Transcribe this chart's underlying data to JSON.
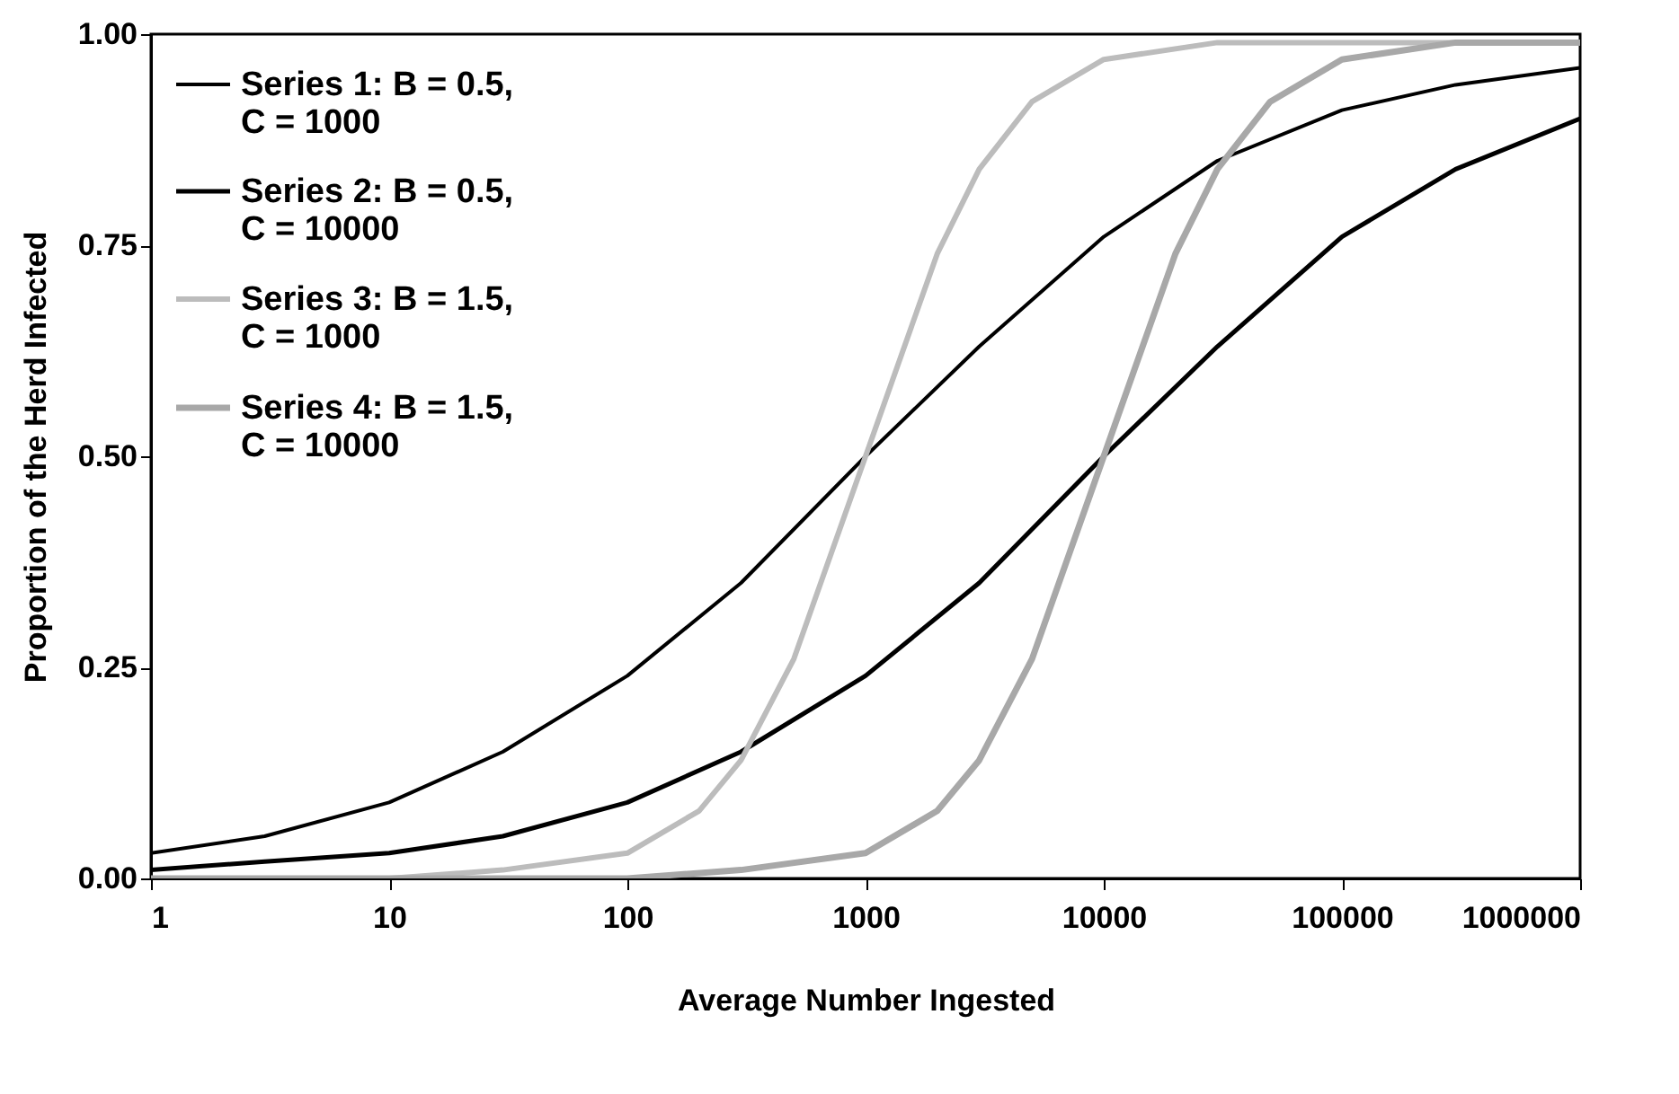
{
  "chart_data": {
    "type": "line",
    "xlabel": "Average Number Ingested",
    "ylabel": "Proportion of the Herd Infected",
    "log": "x",
    "xlim": [
      1,
      1000000
    ],
    "xticks": [
      1,
      10,
      100,
      1000,
      10000,
      100000,
      1000000
    ],
    "ylim": [
      0,
      1
    ],
    "yticks": [
      {
        "value": 0,
        "label": "0.00"
      },
      {
        "value": 0.25,
        "label": "0.25"
      },
      {
        "value": 0.5,
        "label": "0.50"
      },
      {
        "value": 0.75,
        "label": "0.75"
      },
      {
        "value": 1,
        "label": "1.00"
      }
    ],
    "grid": false,
    "legend": "top left",
    "line_style": "solid",
    "marker": "none",
    "series": [
      {
        "name": "Series 1: B = 0.5, C = 1000",
        "color": "#000000",
        "x": [
          1,
          3,
          10,
          30,
          100,
          300,
          1000,
          3000,
          10000,
          30000,
          100000,
          300000,
          1000000
        ],
        "values": [
          0.03,
          0.05,
          0.09,
          0.15,
          0.24,
          0.35,
          0.5,
          0.63,
          0.76,
          0.85,
          0.91,
          0.94,
          0.96
        ]
      },
      {
        "name": "Series 2: B = 0.5, C = 10000",
        "color": "#000000",
        "x": [
          1,
          3,
          10,
          30,
          100,
          300,
          1000,
          3000,
          10000,
          30000,
          100000,
          300000,
          1000000
        ],
        "values": [
          0.01,
          0.02,
          0.03,
          0.05,
          0.09,
          0.15,
          0.24,
          0.35,
          0.5,
          0.63,
          0.76,
          0.84,
          0.9
        ]
      },
      {
        "name": "Series 3: B = 1.5, C = 1000",
        "color": "#bcbcbc",
        "x": [
          1,
          10,
          30,
          100,
          200,
          300,
          500,
          1000,
          2000,
          3000,
          5000,
          10000,
          30000,
          100000,
          1000000
        ],
        "values": [
          0,
          0,
          0.01,
          0.03,
          0.08,
          0.14,
          0.26,
          0.5,
          0.74,
          0.84,
          0.92,
          0.97,
          0.99,
          0.99,
          0.99
        ]
      },
      {
        "name": "Series 4: B = 1.5, C = 10000",
        "color": "#a8a8a8",
        "x": [
          1,
          10,
          100,
          300,
          1000,
          2000,
          3000,
          5000,
          10000,
          20000,
          30000,
          50000,
          100000,
          300000,
          1000000
        ],
        "values": [
          0,
          0,
          0,
          0.01,
          0.03,
          0.08,
          0.14,
          0.26,
          0.5,
          0.74,
          0.84,
          0.92,
          0.97,
          0.99,
          0.99
        ]
      }
    ]
  }
}
